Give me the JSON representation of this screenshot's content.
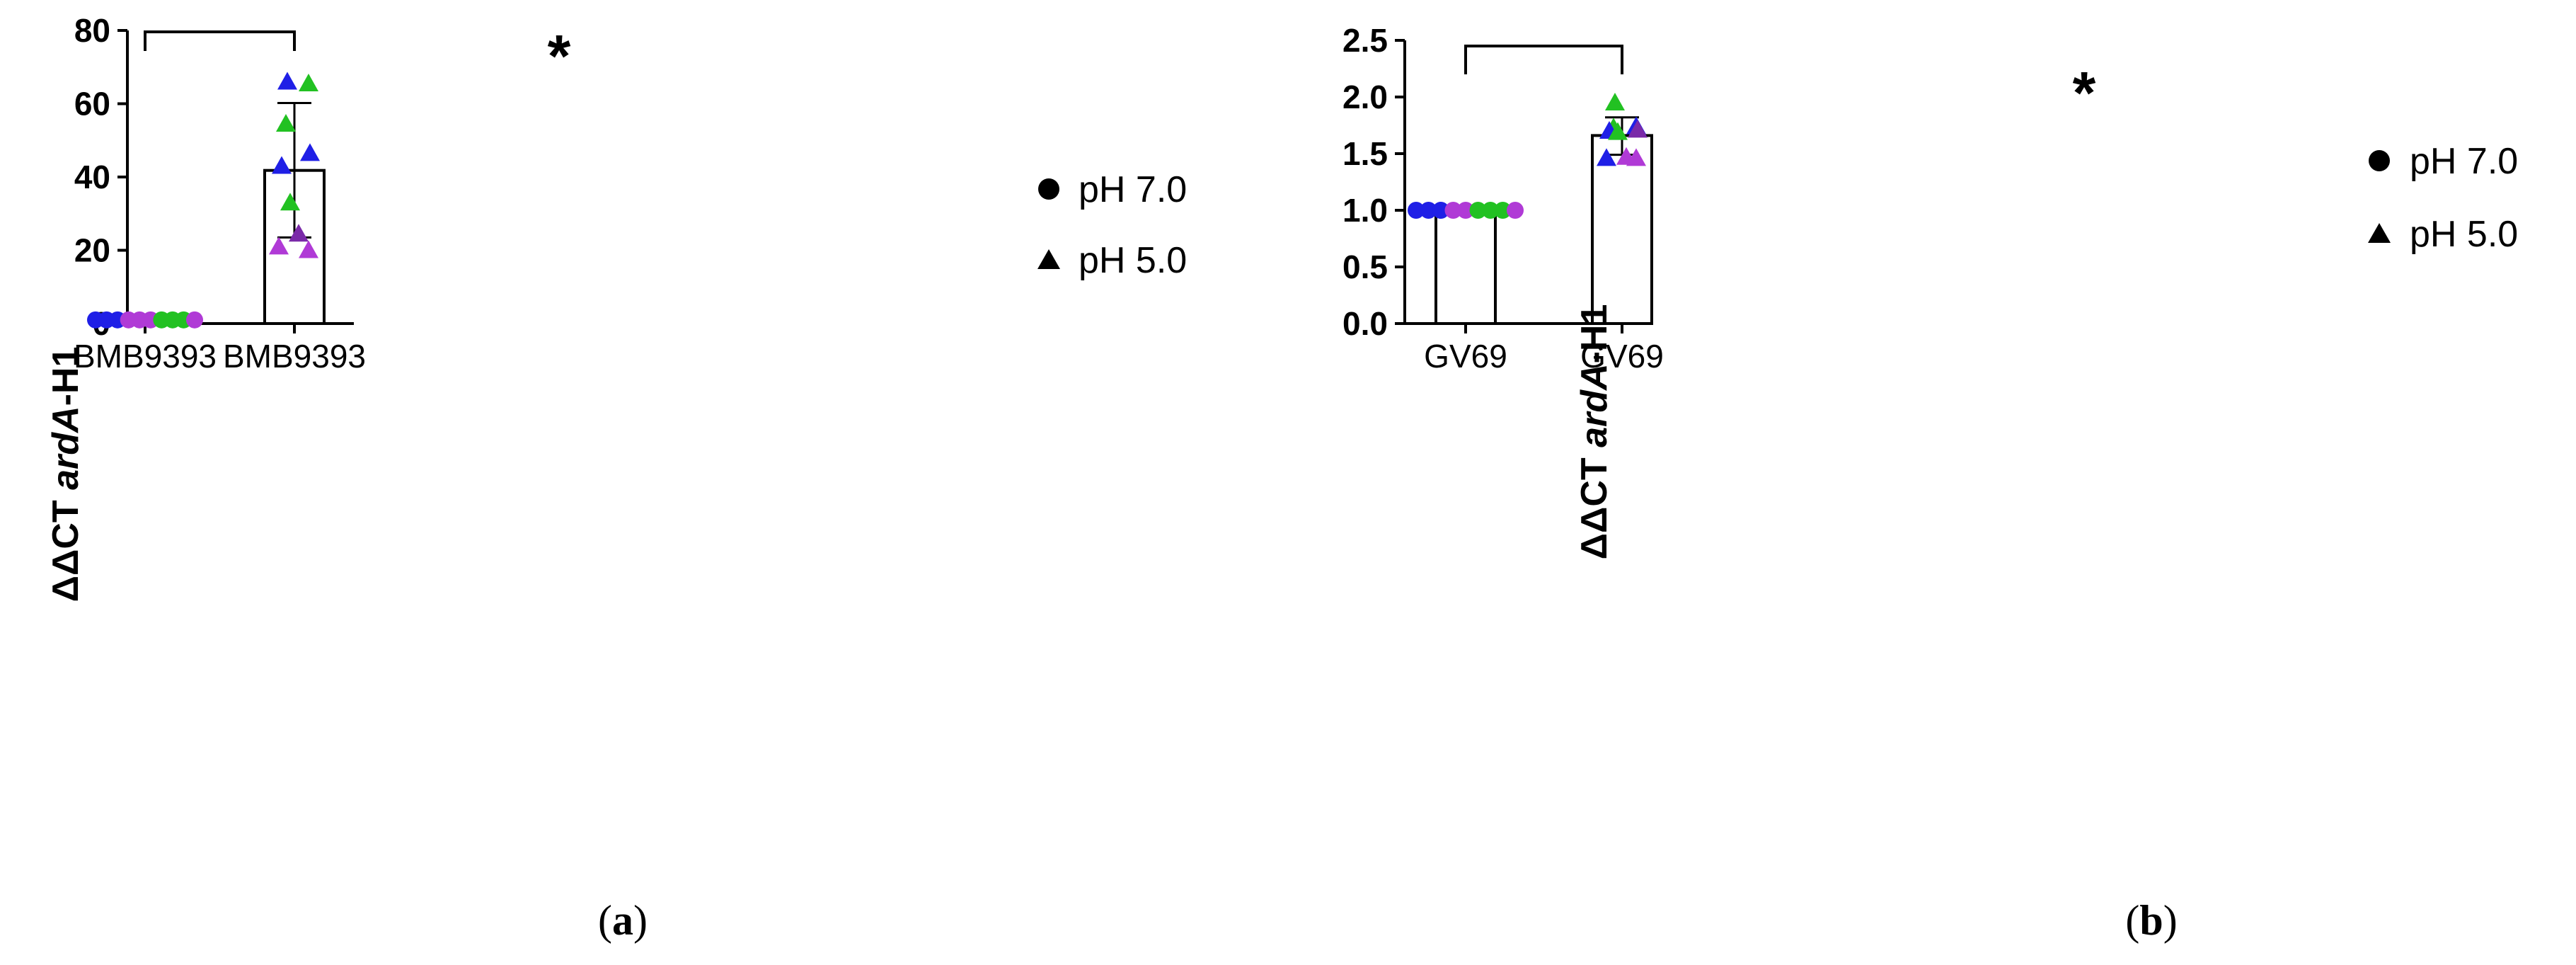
{
  "chart_data": [
    {
      "type": "bar",
      "panel_label": "a",
      "ylabel_prefix": "ΔΔCT ",
      "ylabel_gene": "ardA",
      "ylabel_suffix": "-H1",
      "ylim": [
        0,
        80
      ],
      "yticks": [
        0,
        20,
        40,
        60,
        80
      ],
      "categories": [
        "BMB9393",
        "BMB9393"
      ],
      "bar_values": [
        1.0,
        41.8
      ],
      "error_bars": [
        null,
        [
          23.5,
          60.2
        ]
      ],
      "significance": "*",
      "legend": [
        {
          "label": "pH 7.0",
          "marker": "circle"
        },
        {
          "label": "pH 5.0",
          "marker": "triangle"
        }
      ],
      "series": [
        {
          "category_index": 0,
          "marker": "circle",
          "points": [
            {
              "y": 1,
              "color": "#1f1fe6"
            },
            {
              "y": 1,
              "color": "#1f1fe6"
            },
            {
              "y": 1,
              "color": "#1f1fe6"
            },
            {
              "y": 1,
              "color": "#b03ad6"
            },
            {
              "y": 1,
              "color": "#b03ad6"
            },
            {
              "y": 1,
              "color": "#b03ad6"
            },
            {
              "y": 1,
              "color": "#22c122"
            },
            {
              "y": 1,
              "color": "#22c122"
            },
            {
              "y": 1,
              "color": "#22c122"
            },
            {
              "y": 1,
              "color": "#b03ad6"
            }
          ]
        },
        {
          "category_index": 1,
          "marker": "triangle",
          "points": [
            {
              "y": 66,
              "color": "#1f1fe6"
            },
            {
              "y": 65.5,
              "color": "#22c122"
            },
            {
              "y": 54.5,
              "color": "#22c122"
            },
            {
              "y": 46.5,
              "color": "#1f1fe6"
            },
            {
              "y": 43,
              "color": "#1f1fe6"
            },
            {
              "y": 33,
              "color": "#22c122"
            },
            {
              "y": 24.5,
              "color": "#7a2aa8"
            },
            {
              "y": 21,
              "color": "#b03ad6"
            },
            {
              "y": 20,
              "color": "#b03ad6"
            }
          ]
        }
      ]
    },
    {
      "type": "bar",
      "panel_label": "b",
      "ylabel_prefix": "ΔΔCT ",
      "ylabel_gene": "ardA",
      "ylabel_suffix": "-H1",
      "ylim": [
        0,
        2.5
      ],
      "yticks": [
        0.0,
        0.5,
        1.0,
        1.5,
        2.0,
        2.5
      ],
      "categories": [
        "GV69",
        "GV69"
      ],
      "bar_values": [
        1.0,
        1.66
      ],
      "error_bars": [
        null,
        [
          1.49,
          1.82
        ]
      ],
      "significance": "*",
      "legend": [
        {
          "label": "pH 7.0",
          "marker": "circle"
        },
        {
          "label": "pH 5.0",
          "marker": "triangle"
        }
      ],
      "series": [
        {
          "category_index": 0,
          "marker": "circle",
          "points": [
            {
              "y": 1,
              "color": "#1f1fe6"
            },
            {
              "y": 1,
              "color": "#1f1fe6"
            },
            {
              "y": 1,
              "color": "#1f1fe6"
            },
            {
              "y": 1,
              "color": "#b03ad6"
            },
            {
              "y": 1,
              "color": "#b03ad6"
            },
            {
              "y": 1,
              "color": "#22c122"
            },
            {
              "y": 1,
              "color": "#22c122"
            },
            {
              "y": 1,
              "color": "#22c122"
            },
            {
              "y": 1,
              "color": "#b03ad6"
            }
          ]
        },
        {
          "category_index": 1,
          "marker": "triangle",
          "points": [
            {
              "y": 1.95,
              "color": "#22c122"
            },
            {
              "y": 1.74,
              "color": "#1f1fe6"
            },
            {
              "y": 1.73,
              "color": "#22c122"
            },
            {
              "y": 1.71,
              "color": "#7a2aa8"
            },
            {
              "y": 1.7,
              "color": "#1f1fe6"
            },
            {
              "y": 1.69,
              "color": "#22c122"
            },
            {
              "y": 1.47,
              "color": "#b03ad6"
            },
            {
              "y": 1.46,
              "color": "#1f1fe6"
            },
            {
              "y": 1.46,
              "color": "#b03ad6"
            }
          ]
        }
      ]
    }
  ]
}
